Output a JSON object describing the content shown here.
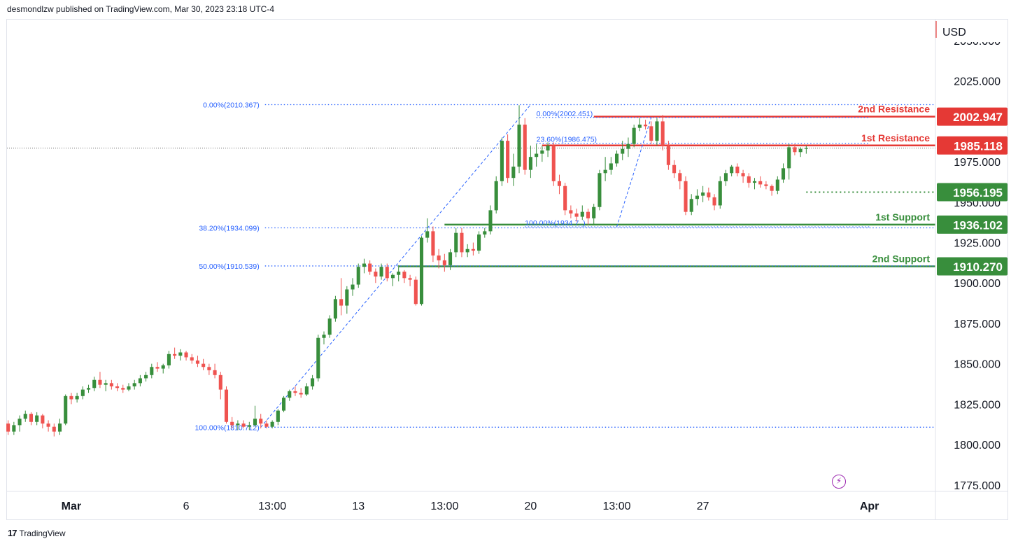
{
  "header": {
    "published_text": "desmondlzw published on TradingView.com, Mar 30, 2023 23:18 UTC-4"
  },
  "footer": {
    "brand": "TradingView"
  },
  "icons": {
    "tv_logo": "tradingview-logo-icon",
    "lightning": "lightning-icon"
  },
  "colors": {
    "up": "#388e3c",
    "down": "#ef5350",
    "resistance": "#e53935",
    "support": "#388e3c",
    "fib": "#2962ff",
    "axis_text": "#131722",
    "grid": "#e0e3eb"
  },
  "chart_data": {
    "type": "candlestick",
    "currency_label": "USD",
    "y_axis_ticks": [
      "2050.000",
      "2025.000",
      "1975.000",
      "1950.000",
      "1925.000",
      "1900.000",
      "1875.000",
      "1850.000",
      "1825.000",
      "1800.000",
      "1775.000"
    ],
    "y_axis_tick_values": [
      2050,
      2025,
      1975,
      1950,
      1925,
      1900,
      1875,
      1850,
      1825,
      1800,
      1775
    ],
    "ylim": [
      1771,
      2063
    ],
    "x_axis_ticks": [
      {
        "label": "Mar",
        "index": 11
      },
      {
        "label": "6",
        "index": 31
      },
      {
        "label": "13:00",
        "index": 46
      },
      {
        "label": "13",
        "index": 61
      },
      {
        "label": "13:00",
        "index": 76
      },
      {
        "label": "20",
        "index": 91
      },
      {
        "label": "13:00",
        "index": 106
      },
      {
        "label": "27",
        "index": 121
      },
      {
        "label": "Apr",
        "index": 150
      }
    ],
    "x_range": [
      -0.2,
      161.5
    ],
    "price_labels": [
      {
        "text": "2002.947",
        "value": 2002.947,
        "kind": "resistance"
      },
      {
        "text": "1985.118",
        "value": 1985.118,
        "kind": "resistance"
      },
      {
        "text": "1956.195",
        "value": 1956.195,
        "kind": "support"
      },
      {
        "text": "1936.102",
        "value": 1936.102,
        "kind": "support"
      },
      {
        "text": "1910.270",
        "value": 1910.27,
        "kind": "support"
      }
    ],
    "levels": [
      {
        "name": "2nd Resistance",
        "value": 2002.947,
        "kind": "resistance",
        "start_index": 102,
        "style": "solid"
      },
      {
        "name": "1st Resistance",
        "value": 1985.118,
        "kind": "resistance",
        "start_index": 93,
        "style": "solid"
      },
      {
        "name": "",
        "value": 1956.195,
        "kind": "support",
        "start_index": 139,
        "style": "dotted"
      },
      {
        "name": "1st Support",
        "value": 1936.102,
        "kind": "support",
        "start_index": 76,
        "style": "solid"
      },
      {
        "name": "2nd Support",
        "value": 1910.27,
        "kind": "support",
        "start_index": 68,
        "style": "solid"
      }
    ],
    "fib_a": {
      "start": {
        "index": 44,
        "value": 1810.712
      },
      "end": {
        "index": 91,
        "value": 2010.367
      },
      "levels": [
        {
          "label": "0.00%(2010.367)",
          "value": 2010.367
        },
        {
          "label": "38.20%(1934.099)",
          "value": 1934.099
        },
        {
          "label": "50.00%(1910.539)",
          "value": 1910.539
        },
        {
          "label": "100.00%(1810.712)",
          "value": 1810.712
        }
      ]
    },
    "fib_b": {
      "start": {
        "index": 106,
        "value": 1934.7
      },
      "end": {
        "index": 112,
        "value": 2002.451
      },
      "levels": [
        {
          "label": "0.00%(2002.451)",
          "value": 2002.451,
          "label_index": 92
        },
        {
          "label": "23.60%(1986.475)",
          "value": 1986.475,
          "label_index": 92
        },
        {
          "label": "100.00%(1934.7..)",
          "value": 1934.7,
          "label_index": 90
        }
      ],
      "end_index": 150
    },
    "last_price": 1983.5,
    "candles": [
      [
        1813,
        1815,
        1806,
        1808
      ],
      [
        1808,
        1814,
        1806,
        1812
      ],
      [
        1812,
        1818,
        1808,
        1816
      ],
      [
        1816,
        1821,
        1814,
        1819
      ],
      [
        1819,
        1820,
        1812,
        1814
      ],
      [
        1814,
        1820,
        1812,
        1818
      ],
      [
        1818,
        1819,
        1810,
        1813
      ],
      [
        1813,
        1815,
        1808,
        1811
      ],
      [
        1811,
        1813,
        1805,
        1808
      ],
      [
        1808,
        1816,
        1806,
        1813
      ],
      [
        1813,
        1831,
        1812,
        1830
      ],
      [
        1830,
        1832,
        1825,
        1828
      ],
      [
        1828,
        1832,
        1826,
        1830
      ],
      [
        1830,
        1836,
        1828,
        1834
      ],
      [
        1834,
        1837,
        1832,
        1835
      ],
      [
        1835,
        1842,
        1833,
        1840
      ],
      [
        1840,
        1845,
        1835,
        1837
      ],
      [
        1837,
        1840,
        1833,
        1838
      ],
      [
        1838,
        1840,
        1834,
        1836
      ],
      [
        1836,
        1838,
        1833,
        1835
      ],
      [
        1835,
        1837,
        1832,
        1834
      ],
      [
        1834,
        1838,
        1833,
        1836
      ],
      [
        1836,
        1840,
        1834,
        1838
      ],
      [
        1838,
        1843,
        1836,
        1841
      ],
      [
        1841,
        1845,
        1839,
        1843
      ],
      [
        1843,
        1850,
        1841,
        1848
      ],
      [
        1848,
        1851,
        1845,
        1847
      ],
      [
        1847,
        1850,
        1844,
        1849
      ],
      [
        1849,
        1858,
        1847,
        1856
      ],
      [
        1856,
        1860,
        1853,
        1855
      ],
      [
        1855,
        1859,
        1852,
        1857
      ],
      [
        1857,
        1858,
        1852,
        1854
      ],
      [
        1854,
        1856,
        1850,
        1852
      ],
      [
        1852,
        1855,
        1848,
        1850
      ],
      [
        1850,
        1853,
        1846,
        1848
      ],
      [
        1848,
        1850,
        1843,
        1846
      ],
      [
        1846,
        1850,
        1841,
        1843
      ],
      [
        1843,
        1845,
        1828,
        1834
      ],
      [
        1834,
        1836,
        1813,
        1814
      ],
      [
        1814,
        1817,
        1810,
        1812
      ],
      [
        1812,
        1815,
        1809,
        1813
      ],
      [
        1813,
        1815,
        1810,
        1811
      ],
      [
        1811,
        1814,
        1809,
        1812
      ],
      [
        1812,
        1824,
        1811,
        1816
      ],
      [
        1816,
        1819,
        1810,
        1813
      ],
      [
        1813,
        1815,
        1810,
        1811
      ],
      [
        1811,
        1815,
        1810,
        1814
      ],
      [
        1814,
        1822,
        1812,
        1821
      ],
      [
        1821,
        1830,
        1820,
        1829
      ],
      [
        1829,
        1834,
        1827,
        1833
      ],
      [
        1833,
        1836,
        1830,
        1832
      ],
      [
        1832,
        1835,
        1829,
        1831
      ],
      [
        1831,
        1838,
        1830,
        1836
      ],
      [
        1836,
        1843,
        1834,
        1841
      ],
      [
        1841,
        1868,
        1839,
        1866
      ],
      [
        1866,
        1870,
        1862,
        1868
      ],
      [
        1868,
        1880,
        1866,
        1878
      ],
      [
        1878,
        1892,
        1876,
        1890
      ],
      [
        1890,
        1903,
        1880,
        1886
      ],
      [
        1886,
        1898,
        1881,
        1896
      ],
      [
        1896,
        1903,
        1892,
        1899
      ],
      [
        1899,
        1912,
        1897,
        1910
      ],
      [
        1910,
        1915,
        1906,
        1912
      ],
      [
        1912,
        1914,
        1905,
        1907
      ],
      [
        1907,
        1909,
        1900,
        1904
      ],
      [
        1904,
        1912,
        1902,
        1910
      ],
      [
        1910,
        1912,
        1901,
        1903
      ],
      [
        1903,
        1906,
        1898,
        1905
      ],
      [
        1905,
        1911,
        1901,
        1907
      ],
      [
        1907,
        1908,
        1900,
        1903
      ],
      [
        1903,
        1905,
        1898,
        1902
      ],
      [
        1902,
        1904,
        1886,
        1887
      ],
      [
        1887,
        1929,
        1886,
        1928
      ],
      [
        1928,
        1940,
        1925,
        1932
      ],
      [
        1932,
        1935,
        1913,
        1917
      ],
      [
        1917,
        1921,
        1909,
        1914
      ],
      [
        1914,
        1918,
        1907,
        1911
      ],
      [
        1911,
        1921,
        1908,
        1919
      ],
      [
        1919,
        1934,
        1916,
        1931
      ],
      [
        1931,
        1934,
        1916,
        1919
      ],
      [
        1919,
        1924,
        1916,
        1921
      ],
      [
        1921,
        1925,
        1917,
        1920
      ],
      [
        1920,
        1932,
        1918,
        1930
      ],
      [
        1930,
        1934,
        1928,
        1932
      ],
      [
        1932,
        1948,
        1930,
        1945
      ],
      [
        1945,
        1966,
        1943,
        1963
      ],
      [
        1963,
        1990,
        1960,
        1988
      ],
      [
        1988,
        1992,
        1962,
        1965
      ],
      [
        1965,
        1980,
        1960,
        1972
      ],
      [
        1972,
        2010,
        1968,
        1998
      ],
      [
        1998,
        2002,
        1967,
        1970
      ],
      [
        1970,
        1985,
        1965,
        1978
      ],
      [
        1978,
        1986,
        1972,
        1980
      ],
      [
        1980,
        1985,
        1975,
        1982
      ],
      [
        1982,
        1987,
        1978,
        1985
      ],
      [
        1985,
        1987,
        1960,
        1963
      ],
      [
        1963,
        1967,
        1955,
        1960
      ],
      [
        1960,
        1962,
        1942,
        1945
      ],
      [
        1945,
        1948,
        1940,
        1943
      ],
      [
        1943,
        1946,
        1938,
        1941
      ],
      [
        1941,
        1948,
        1939,
        1944
      ],
      [
        1944,
        1946,
        1936,
        1940
      ],
      [
        1940,
        1949,
        1936,
        1947
      ],
      [
        1947,
        1970,
        1945,
        1968
      ],
      [
        1968,
        1978,
        1963,
        1970
      ],
      [
        1970,
        1978,
        1967,
        1974
      ],
      [
        1974,
        1982,
        1972,
        1980
      ],
      [
        1980,
        1988,
        1976,
        1983
      ],
      [
        1983,
        1990,
        1978,
        1986
      ],
      [
        1986,
        1998,
        1984,
        1996
      ],
      [
        1996,
        2002,
        1994,
        1998
      ],
      [
        1998,
        2001,
        1995,
        1997
      ],
      [
        1997,
        2000,
        1986,
        1988
      ],
      [
        1988,
        2002,
        1985,
        2000
      ],
      [
        2000,
        2004,
        1982,
        1985
      ],
      [
        1985,
        1988,
        1970,
        1973
      ],
      [
        1973,
        1976,
        1965,
        1968
      ],
      [
        1968,
        1970,
        1958,
        1963
      ],
      [
        1963,
        1966,
        1942,
        1944
      ],
      [
        1944,
        1955,
        1942,
        1952
      ],
      [
        1952,
        1958,
        1948,
        1954
      ],
      [
        1954,
        1960,
        1950,
        1956
      ],
      [
        1956,
        1959,
        1951,
        1953
      ],
      [
        1953,
        1955,
        1945,
        1948
      ],
      [
        1948,
        1966,
        1946,
        1963
      ],
      [
        1963,
        1970,
        1960,
        1968
      ],
      [
        1968,
        1973,
        1966,
        1972
      ],
      [
        1972,
        1974,
        1966,
        1968
      ],
      [
        1968,
        1970,
        1962,
        1966
      ],
      [
        1966,
        1968,
        1959,
        1962
      ],
      [
        1962,
        1965,
        1958,
        1963
      ],
      [
        1963,
        1966,
        1959,
        1961
      ],
      [
        1961,
        1963,
        1958,
        1960
      ],
      [
        1960,
        1961,
        1954,
        1957
      ],
      [
        1957,
        1966,
        1955,
        1964
      ],
      [
        1964,
        1974,
        1962,
        1971
      ],
      [
        1971,
        1986,
        1964,
        1984
      ],
      [
        1984,
        1986,
        1979,
        1981
      ],
      [
        1981,
        1984,
        1978,
        1983
      ],
      [
        1983,
        1985,
        1980,
        1983.5
      ]
    ]
  }
}
